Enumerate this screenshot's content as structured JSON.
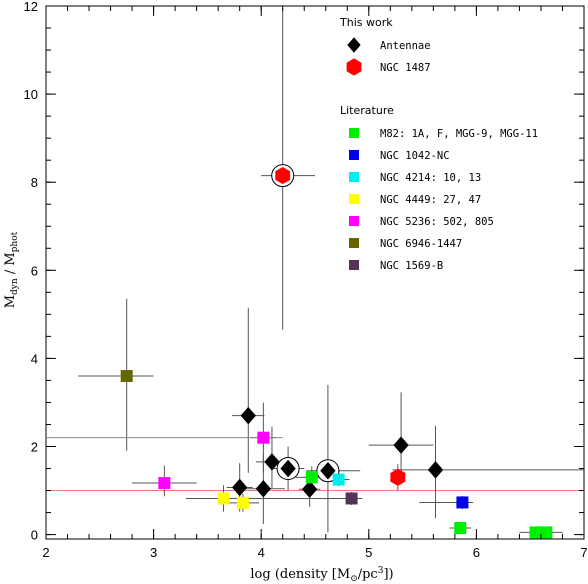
{
  "chart_data": {
    "type": "scatter",
    "title": "",
    "xlabel_main": "log (density [M",
    "xlabel_sub": "⊙",
    "xlabel_mid": "/pc",
    "xlabel_sup": "3",
    "xlabel_end": "])",
    "ylabel_main": "M",
    "ylabel_sub1": "dyn",
    "ylabel_mid": " / M",
    "ylabel_sub2": "phot",
    "xlim": [
      2,
      7
    ],
    "ylim": [
      -0.1,
      12
    ],
    "xticks": [
      "2",
      "3",
      "4",
      "5",
      "6",
      "7"
    ],
    "yticks": [
      "0",
      "2",
      "4",
      "6",
      "8",
      "10",
      "12"
    ],
    "reference_line": {
      "y": 1.0,
      "color": "#e88080"
    },
    "legend": {
      "this_work_title": "This work",
      "literature_title": "Literature"
    },
    "series": [
      {
        "name": "Antennae",
        "group": "this_work",
        "marker": "diamond",
        "color": "#000000",
        "points": [
          {
            "x": 3.88,
            "y": 2.7,
            "xerr": [
              0.15,
              0.15
            ],
            "yerr": [
              1.3,
              2.45
            ]
          },
          {
            "x": 3.8,
            "y": 1.07,
            "xerr": [
              0.12,
              0.12
            ],
            "yerr": [
              0.55,
              0.55
            ]
          },
          {
            "x": 4.02,
            "y": 1.04,
            "xerr": [
              0.2,
              0.2
            ],
            "yerr": [
              0.8,
              0.8
            ]
          },
          {
            "x": 4.1,
            "y": 1.65,
            "xerr": [
              0.15,
              0.15
            ],
            "yerr": [
              0.6,
              0.8
            ]
          },
          {
            "x": 4.25,
            "y": 1.5,
            "xerr": [
              0.15,
              0.15
            ],
            "yerr": [
              0.5,
              0.5
            ],
            "circled": true
          },
          {
            "x": 4.45,
            "y": 1.03,
            "xerr": [
              0.1,
              0.1
            ],
            "yerr": [
              0.4,
              0.4
            ]
          },
          {
            "x": 4.62,
            "y": 1.45,
            "xerr": [
              0.2,
              0.3
            ],
            "yerr": [
              1.4,
              1.95
            ],
            "circled": true
          },
          {
            "x": 5.3,
            "y": 2.03,
            "xerr": [
              0.3,
              0.3
            ],
            "yerr": [
              0.7,
              1.2
            ]
          },
          {
            "x": 5.62,
            "y": 1.47,
            "xerr": [
              0.4,
              1.45
            ],
            "yerr": [
              1.1,
              1.0
            ]
          }
        ]
      },
      {
        "name": "NGC 1487",
        "group": "this_work",
        "marker": "hexagon",
        "color": "#ff0000",
        "points": [
          {
            "x": 4.2,
            "y": 8.15,
            "xerr": [
              0.2,
              0.3
            ],
            "yerr": [
              3.5,
              3.8
            ],
            "circled": true
          },
          {
            "x": 5.27,
            "y": 1.3,
            "xerr": [
              0.0,
              0.0
            ],
            "yerr": [
              0.3,
              0.3
            ]
          }
        ]
      },
      {
        "name": "M82: 1A, F, MGG-9, MGG-11",
        "group": "literature",
        "marker": "square",
        "color": "#00ee00",
        "points": [
          {
            "x": 4.47,
            "y": 1.3,
            "xerr": [
              0.15,
              0.15
            ],
            "yerr": [
              0.25,
              0.25
            ]
          },
          {
            "x": 5.85,
            "y": 0.15,
            "xerr": [
              0.1,
              0.1
            ],
            "yerr": [
              0.1,
              0.1
            ]
          },
          {
            "x": 6.55,
            "y": 0.05,
            "xerr": [
              0.15,
              0.15
            ],
            "yerr": [
              0.05,
              0.05
            ]
          },
          {
            "x": 6.65,
            "y": 0.05,
            "xerr": [
              0.15,
              0.15
            ],
            "yerr": [
              0.05,
              0.05
            ]
          }
        ]
      },
      {
        "name": "NGC 1042-NC",
        "group": "literature",
        "marker": "square",
        "color": "#0000ee",
        "points": [
          {
            "x": 5.87,
            "y": 0.73,
            "xerr": [
              0.4,
              0.1
            ],
            "yerr": [
              0.15,
              0.15
            ]
          }
        ]
      },
      {
        "name": "NGC 4214: 10, 13",
        "group": "literature",
        "marker": "square",
        "color": "#00eeee",
        "points": [
          {
            "x": 4.72,
            "y": 1.25,
            "xerr": [
              0.1,
              0.1
            ],
            "yerr": [
              0.15,
              0.15
            ]
          }
        ]
      },
      {
        "name": "NGC 4449: 27, 47",
        "group": "literature",
        "marker": "square",
        "color": "#ffff00",
        "points": [
          {
            "x": 3.65,
            "y": 0.82,
            "xerr": [
              0.35,
              0.35
            ],
            "yerr": [
              0.3,
              0.3
            ]
          },
          {
            "x": 3.83,
            "y": 0.72,
            "xerr": [
              0.15,
              0.15
            ],
            "yerr": [
              0.2,
              0.2
            ]
          }
        ]
      },
      {
        "name": "NGC 5236: 502, 805",
        "group": "literature",
        "marker": "square",
        "color": "#ff00ff",
        "points": [
          {
            "x": 3.1,
            "y": 1.17,
            "xerr": [
              0.3,
              0.3
            ],
            "yerr": [
              0.3,
              0.4
            ]
          },
          {
            "x": 4.02,
            "y": 2.2,
            "xerr": [
              0.12,
              0.12
            ],
            "yerr": [
              0.8,
              0.8
            ]
          }
        ]
      },
      {
        "name": "NGC 6946-1447",
        "group": "literature",
        "marker": "square",
        "color": "#666600",
        "points": [
          {
            "x": 2.75,
            "y": 3.6,
            "xerr": [
              0.45,
              0.25
            ],
            "yerr": [
              1.7,
              1.75
            ]
          }
        ]
      },
      {
        "name": "NGC 1569-B",
        "group": "literature",
        "marker": "square",
        "color": "#553355",
        "points": [
          {
            "x": 4.84,
            "y": 0.82,
            "xerr": [
              1.4,
              0.1
            ],
            "yerr": [
              0.15,
              0.15
            ]
          }
        ]
      }
    ],
    "extra_errorbars": [
      {
        "x": 3.3,
        "y": 2.2,
        "xerr": [
          1.3,
          0.9
        ],
        "yerr": [
          0,
          0
        ],
        "color": "#888888"
      }
    ]
  }
}
